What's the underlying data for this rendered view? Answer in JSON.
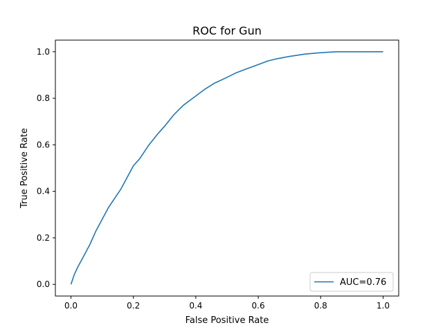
{
  "chart_data": {
    "type": "line",
    "title": "ROC for Gun",
    "xlabel": "False Positive Rate",
    "ylabel": "True Positive Rate",
    "xlim": [
      -0.05,
      1.05
    ],
    "ylim": [
      -0.05,
      1.05
    ],
    "xticks": [
      0.0,
      0.2,
      0.4,
      0.6,
      0.8,
      1.0
    ],
    "yticks": [
      0.0,
      0.2,
      0.4,
      0.6,
      0.8,
      1.0
    ],
    "xtick_labels": [
      "0.0",
      "0.2",
      "0.4",
      "0.6",
      "0.8",
      "1.0"
    ],
    "ytick_labels": [
      "0.0",
      "0.2",
      "0.4",
      "0.6",
      "0.8",
      "1.0"
    ],
    "grid": false,
    "legend_position": "lower-right",
    "series": [
      {
        "name": "AUC=0.76",
        "color": "#1f77b4",
        "x": [
          0.0,
          0.01,
          0.02,
          0.04,
          0.06,
          0.08,
          0.1,
          0.12,
          0.14,
          0.16,
          0.18,
          0.2,
          0.22,
          0.25,
          0.28,
          0.3,
          0.33,
          0.36,
          0.4,
          0.43,
          0.46,
          0.5,
          0.53,
          0.56,
          0.6,
          0.63,
          0.66,
          0.7,
          0.75,
          0.8,
          0.85,
          0.9,
          1.0
        ],
        "y": [
          0.0,
          0.04,
          0.07,
          0.12,
          0.17,
          0.23,
          0.28,
          0.33,
          0.37,
          0.41,
          0.46,
          0.51,
          0.54,
          0.6,
          0.65,
          0.68,
          0.73,
          0.77,
          0.81,
          0.84,
          0.865,
          0.89,
          0.91,
          0.925,
          0.945,
          0.96,
          0.97,
          0.98,
          0.99,
          0.996,
          1.0,
          1.0,
          1.0
        ]
      }
    ]
  }
}
